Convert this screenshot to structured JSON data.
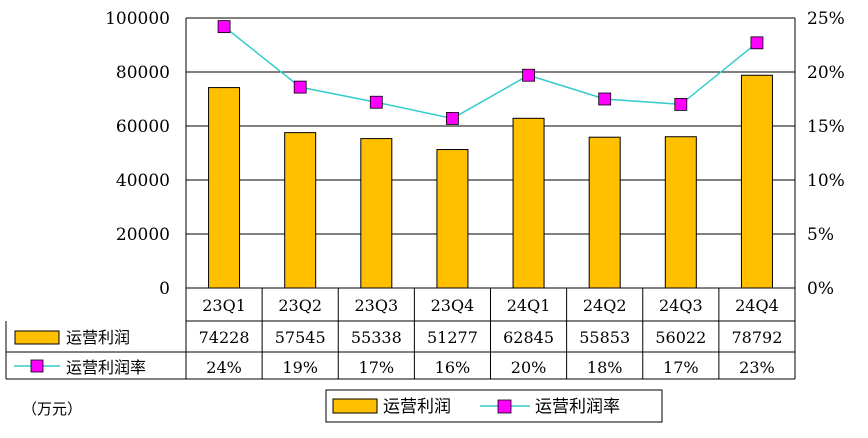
{
  "chart_data": {
    "type": "bar",
    "categories": [
      "23Q1",
      "23Q2",
      "23Q3",
      "23Q4",
      "24Q1",
      "24Q2",
      "24Q3",
      "24Q4"
    ],
    "series": [
      {
        "name": "运营利润",
        "type": "bar",
        "axis": "left",
        "values": [
          74228,
          57545,
          55338,
          51277,
          62845,
          55853,
          56022,
          78792
        ],
        "labels": [
          "74228",
          "57545",
          "55338",
          "51277",
          "62845",
          "55853",
          "56022",
          "78792"
        ],
        "color": "#FFC000"
      },
      {
        "name": "运营利润率",
        "type": "line",
        "axis": "right",
        "values": [
          0.242,
          0.186,
          0.172,
          0.157,
          0.197,
          0.175,
          0.17,
          0.227
        ],
        "labels": [
          "24%",
          "19%",
          "17%",
          "16%",
          "20%",
          "18%",
          "17%",
          "23%"
        ],
        "color": "#33CCCC",
        "marker_color": "#FF00FF"
      }
    ],
    "y_left": {
      "lim": [
        0,
        100000
      ],
      "ticks": [
        "0",
        "20000",
        "40000",
        "60000",
        "80000",
        "100000"
      ]
    },
    "y_right": {
      "lim": [
        0,
        0.25
      ],
      "ticks": [
        "0%",
        "5%",
        "10%",
        "15%",
        "20%",
        "25%"
      ]
    },
    "unit": "（万元）",
    "grid": true,
    "legend": {
      "placement": "bottom-center",
      "entries": [
        "运营利润",
        "运营利润率"
      ]
    }
  }
}
